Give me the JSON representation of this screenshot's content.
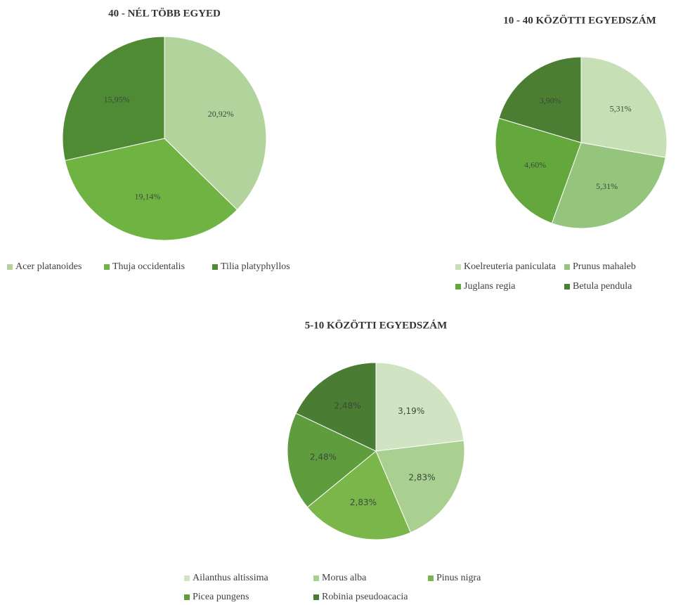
{
  "chart_data": [
    {
      "type": "pie",
      "title": "40 - NÉL TÖBB EGYED",
      "categories": [
        "Acer platanoides",
        "Thuja occidentalis",
        "Tilia platyphyllos"
      ],
      "values": [
        20.92,
        19.14,
        15.95
      ],
      "value_labels": [
        "20,92%",
        "19,14%",
        "15,95%"
      ],
      "colors": [
        "#b3d39c",
        "#6fb443",
        "#4f8a35"
      ],
      "legend": "bottom"
    },
    {
      "type": "pie",
      "title": "10 - 40 KÖZÖTTI EGYEDSZÁM",
      "categories": [
        "Koelreuteria paniculata",
        "Prunus mahaleb",
        "Juglans regia",
        "Betula pendula"
      ],
      "values": [
        5.31,
        5.31,
        4.6,
        3.9
      ],
      "value_labels": [
        "5,31%",
        "5,31%",
        "4,60%",
        "3,90%"
      ],
      "colors": [
        "#c6dfb5",
        "#95c57d",
        "#64a83d",
        "#4b7e33"
      ],
      "legend": "bottom"
    },
    {
      "type": "pie",
      "title": "5-10 KÖZÖTTI EGYEDSZÁM",
      "categories": [
        "Ailanthus altissima",
        "Morus alba",
        "Pinus nigra",
        "Picea pungens",
        "Robinia pseudoacacia"
      ],
      "values": [
        3.19,
        2.83,
        2.83,
        2.48,
        2.48
      ],
      "value_labels": [
        "3,19%",
        "2,83%",
        "2,83%",
        "2,48%",
        "2,48%"
      ],
      "colors": [
        "#d0e4c3",
        "#a9cf91",
        "#7ab64a",
        "#5f9c3e",
        "#4a7c33"
      ],
      "legend": "bottom"
    }
  ]
}
